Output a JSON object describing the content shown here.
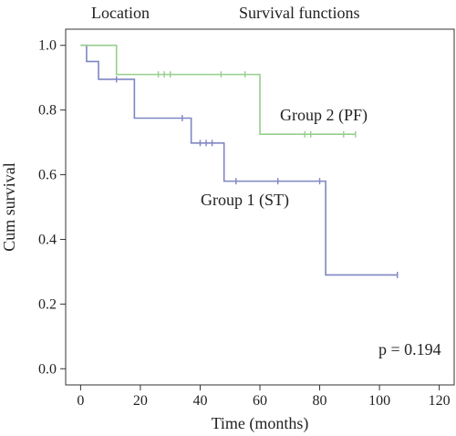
{
  "header": {
    "left": "Location",
    "right": "Survival functions"
  },
  "chart_data": {
    "type": "line",
    "xlabel": "Time (months)",
    "ylabel": "Cum survival",
    "xlim": [
      -5,
      125
    ],
    "ylim": [
      -0.05,
      1.05
    ],
    "x_ticks": [
      0,
      20,
      40,
      60,
      80,
      100,
      120
    ],
    "y_ticks": [
      0.0,
      0.2,
      0.4,
      0.6,
      0.8,
      1.0
    ],
    "x_tick_labels": [
      "0",
      "20",
      "40",
      "60",
      "80",
      "100",
      "120"
    ],
    "y_tick_labels": [
      "0.0",
      "0.2",
      "0.4",
      "0.6",
      "0.8",
      "1.0"
    ],
    "grid": false,
    "step": true,
    "series": [
      {
        "name": "Group 1 (ST)",
        "color": "#7f86c2",
        "steps": [
          [
            0,
            1.0
          ],
          [
            2,
            0.95
          ],
          [
            6,
            0.895
          ],
          [
            18,
            0.775
          ],
          [
            37,
            0.698
          ],
          [
            48,
            0.58
          ],
          [
            82,
            0.29
          ],
          [
            106,
            0.29
          ]
        ],
        "censored": [
          [
            12,
            0.895
          ],
          [
            34,
            0.775
          ],
          [
            40,
            0.698
          ],
          [
            42,
            0.698
          ],
          [
            44,
            0.698
          ],
          [
            52,
            0.58
          ],
          [
            66,
            0.58
          ],
          [
            80,
            0.58
          ],
          [
            106,
            0.29
          ]
        ]
      },
      {
        "name": "Group 2 (PF)",
        "color": "#96cf8e",
        "steps": [
          [
            0,
            1.0
          ],
          [
            12,
            0.91
          ],
          [
            60,
            0.725
          ],
          [
            92,
            0.725
          ]
        ],
        "censored": [
          [
            26,
            0.91
          ],
          [
            28,
            0.91
          ],
          [
            30,
            0.91
          ],
          [
            47,
            0.91
          ],
          [
            55,
            0.91
          ],
          [
            75,
            0.725
          ],
          [
            77,
            0.725
          ],
          [
            88,
            0.725
          ],
          [
            92,
            0.725
          ]
        ]
      }
    ],
    "annotation": "p = 0.194"
  }
}
